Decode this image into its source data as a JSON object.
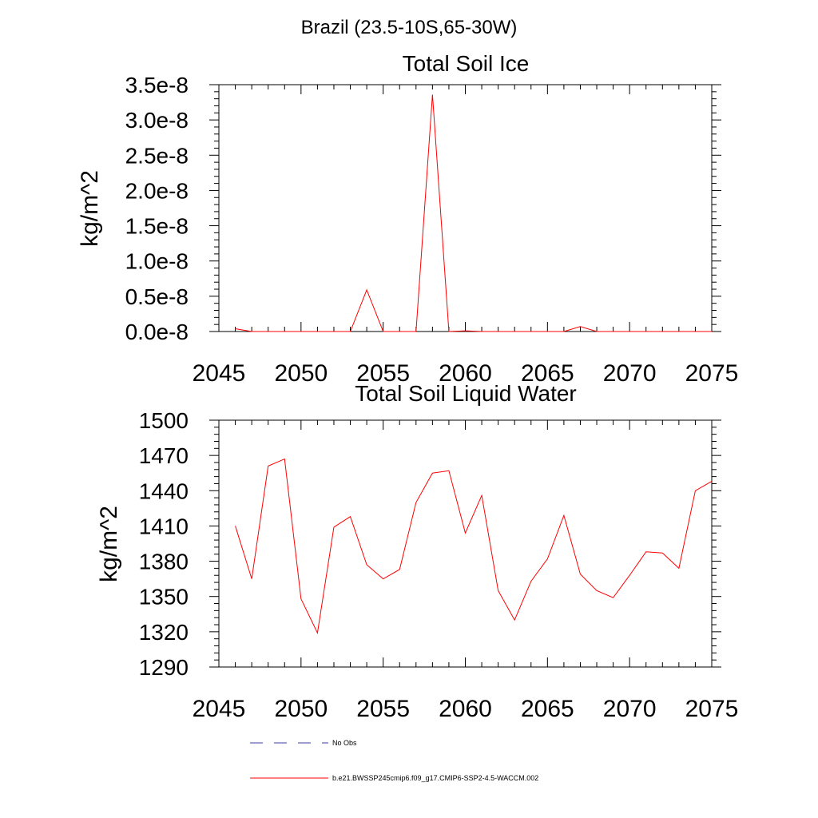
{
  "page_title": "Brazil (23.5-10S,65-30W)",
  "chart_data": [
    {
      "type": "line",
      "title": "Total Soil Ice",
      "xlabel": "",
      "ylabel": "kg/m^2",
      "xlim": [
        2045,
        2075
      ],
      "ylim": [
        0.0,
        3.5e-08
      ],
      "xticks": [
        2045,
        2050,
        2055,
        2060,
        2065,
        2070,
        2075
      ],
      "xtick_labels": [
        "2045",
        "2050",
        "2055",
        "2060",
        "2065",
        "2070",
        "2075"
      ],
      "yticks": [
        0.0,
        5e-09,
        1e-08,
        1.5e-08,
        2e-08,
        2.5e-08,
        3e-08,
        3.5e-08
      ],
      "ytick_labels": [
        "0.0e-8",
        "0.5e-8",
        "1.0e-8",
        "1.5e-8",
        "2.0e-8",
        "2.5e-8",
        "3.0e-8",
        "3.5e-8"
      ],
      "series": [
        {
          "name": "b.e21.BWSSP245cmip6.f09_g17.CMIP6-SSP2-4.5-WACCM.002",
          "color": "#ff0000",
          "x": [
            2046,
            2047,
            2048,
            2049,
            2050,
            2051,
            2052,
            2053,
            2054,
            2055,
            2056,
            2057,
            2058,
            2059,
            2060,
            2061,
            2062,
            2063,
            2064,
            2065,
            2066,
            2067,
            2068,
            2069,
            2070,
            2071,
            2072,
            2073,
            2074,
            2075
          ],
          "values": [
            4e-10,
            0,
            0,
            0,
            0,
            0,
            0,
            0,
            5.9e-09,
            0,
            0,
            0,
            3.36e-08,
            0,
            1e-10,
            0,
            0,
            0,
            0,
            0,
            0,
            7e-10,
            0,
            0,
            0,
            0,
            0,
            0,
            0,
            0
          ]
        }
      ]
    },
    {
      "type": "line",
      "title": "Total Soil Liquid Water",
      "xlabel": "",
      "ylabel": "kg/m^2",
      "xlim": [
        2045,
        2075
      ],
      "ylim": [
        1290,
        1500
      ],
      "xticks": [
        2045,
        2050,
        2055,
        2060,
        2065,
        2070,
        2075
      ],
      "xtick_labels": [
        "2045",
        "2050",
        "2055",
        "2060",
        "2065",
        "2070",
        "2075"
      ],
      "yticks": [
        1290,
        1320,
        1350,
        1380,
        1410,
        1440,
        1470,
        1500
      ],
      "ytick_labels": [
        "1290",
        "1320",
        "1350",
        "1380",
        "1410",
        "1440",
        "1470",
        "1500"
      ],
      "series": [
        {
          "name": "b.e21.BWSSP245cmip6.f09_g17.CMIP6-SSP2-4.5-WACCM.002",
          "color": "#ff0000",
          "x": [
            2046,
            2047,
            2048,
            2049,
            2050,
            2051,
            2052,
            2053,
            2054,
            2055,
            2056,
            2057,
            2058,
            2059,
            2060,
            2061,
            2062,
            2063,
            2064,
            2065,
            2066,
            2067,
            2068,
            2069,
            2070,
            2071,
            2072,
            2073,
            2074,
            2075
          ],
          "values": [
            1410,
            1365,
            1461,
            1467,
            1348,
            1319,
            1409,
            1418,
            1377,
            1365,
            1373,
            1430,
            1455,
            1457,
            1404,
            1436,
            1355,
            1330,
            1363,
            1382,
            1419,
            1369,
            1355,
            1349,
            1368,
            1388,
            1387,
            1374,
            1440,
            1448
          ]
        }
      ]
    }
  ],
  "legend": [
    {
      "label": "No Obs",
      "color": "#3f3f9f",
      "style": "dashed"
    },
    {
      "label": "b.e21.BWSSP245cmip6.f09_g17.CMIP6-SSP2-4.5-WACCM.002",
      "color": "#ff0000",
      "style": "solid"
    }
  ]
}
